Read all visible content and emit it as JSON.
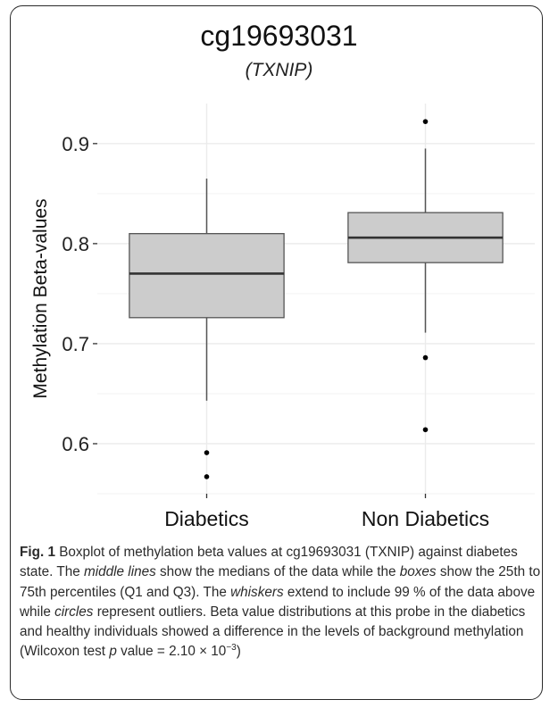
{
  "chart_data": {
    "type": "boxplot",
    "title": "cg19693031",
    "subtitle": "(TXNIP)",
    "xlabel": "",
    "ylabel": "Methylation Beta-values",
    "ylim": [
      0.55,
      0.94
    ],
    "yticks": [
      0.6,
      0.7,
      0.8,
      0.9
    ],
    "ytick_labels": [
      "0.6",
      "0.7",
      "0.8",
      "0.9"
    ],
    "grid": true,
    "categories": [
      "Diabetics",
      "Non Diabetics"
    ],
    "boxes": [
      {
        "name": "Diabetics",
        "whisker_low": 0.643,
        "q1": 0.726,
        "median": 0.77,
        "q3": 0.81,
        "whisker_high": 0.865,
        "outliers": [
          0.591,
          0.567
        ]
      },
      {
        "name": "Non Diabetics",
        "whisker_low": 0.711,
        "q1": 0.781,
        "median": 0.806,
        "q3": 0.831,
        "whisker_high": 0.895,
        "outliers": [
          0.922,
          0.686,
          0.614
        ]
      }
    ],
    "colors": {
      "box_fill": "#cccccc",
      "box_stroke": "#555555",
      "median": "#333333",
      "panel": "#ffffff",
      "grid": "#ebebeb",
      "outlier": "#000000"
    }
  },
  "caption": {
    "fig_label": "Fig. 1",
    "seg1": " Boxplot of methylation beta values at cg19693031 (TXNIP) against diabetes state. The ",
    "em1": "middle lines",
    "seg2": " show the medians of the data while the ",
    "em2": "boxes",
    "seg3": " show the 25th to 75th percentiles (Q1 and Q3). The ",
    "em3": "whiskers",
    "seg4": " extend to include 99 % of the data above while ",
    "em4": "circles",
    "seg5": " represent outliers. Beta value distributions at this probe in the diabetics and healthy individuals showed a difference in the levels of background methylation (Wilcoxon test ",
    "em5": "p",
    "seg6": " value = 2.10 × 10",
    "sup": "−3",
    "seg7": ")"
  }
}
